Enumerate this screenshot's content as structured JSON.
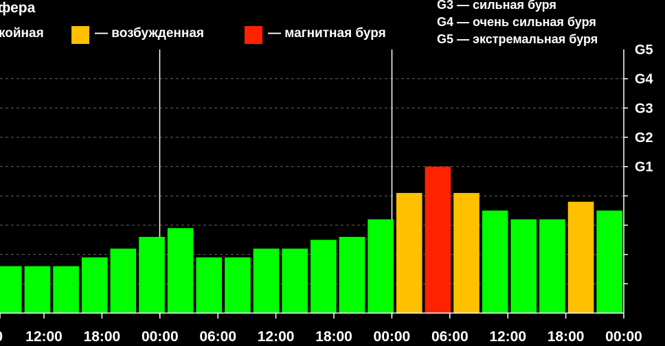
{
  "title": "фера",
  "legend": [
    {
      "label": "койная",
      "color": "#00ff00"
    },
    {
      "label": "— возбужденная",
      "color": "#ffc000"
    },
    {
      "label": "— магнитная буря",
      "color": "#ff2200"
    }
  ],
  "g_scale": [
    "G3 — сильная буря",
    "G4 — очень сильная буря",
    "G5 — экстремальная буря"
  ],
  "colors": {
    "quiet": "#00ff00",
    "active": "#ffc000",
    "storm": "#ff2200",
    "background": "#000000"
  },
  "chart_data": {
    "type": "bar",
    "x_tick_labels": [
      "0",
      "12:00",
      "18:00",
      "00:00",
      "06:00",
      "12:00",
      "18:00",
      "00:00",
      "06:00",
      "12:00",
      "18:00",
      "00:00"
    ],
    "y_tick_labels": [
      "G1",
      "G2",
      "G3",
      "G4",
      "G5"
    ],
    "ylim": [
      0,
      9
    ],
    "grid": "dashed horizontal",
    "values": [
      1.6,
      1.6,
      1.6,
      1.9,
      2.2,
      2.6,
      2.9,
      1.9,
      1.9,
      2.2,
      2.2,
      2.5,
      2.6,
      3.2,
      4.1,
      5.0,
      4.1,
      3.5,
      3.2,
      3.2,
      3.8,
      3.5
    ],
    "level": [
      "quiet",
      "quiet",
      "quiet",
      "quiet",
      "quiet",
      "quiet",
      "quiet",
      "quiet",
      "quiet",
      "quiet",
      "quiet",
      "quiet",
      "quiet",
      "quiet",
      "active",
      "storm",
      "active",
      "quiet",
      "quiet",
      "quiet",
      "active",
      "quiet"
    ]
  }
}
